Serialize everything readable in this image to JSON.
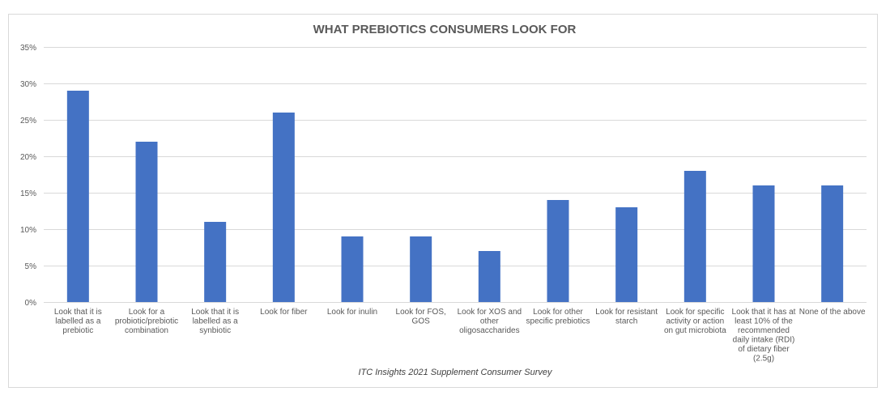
{
  "chart_data": {
    "type": "bar",
    "title": "WHAT PREBIOTICS CONSUMERS LOOK FOR",
    "caption": "ITC Insights 2021 Supplement Consumer Survey",
    "xlabel": "",
    "ylabel": "",
    "ylim": [
      0,
      35
    ],
    "y_ticks": [
      "0%",
      "5%",
      "10%",
      "15%",
      "20%",
      "25%",
      "30%",
      "35%"
    ],
    "grid": true,
    "bar_color": "#4472c4",
    "categories": [
      "Look that it is labelled as a prebiotic",
      "Look for a probiotic/prebiotic combination",
      "Look that it is labelled as a synbiotic",
      "Look for fiber",
      "Look for inulin",
      "Look for FOS, GOS",
      "Look for XOS and other oligosaccharides",
      "Look for other specific prebiotics",
      "Look for resistant starch",
      "Look for specific activity or action on gut microbiota",
      "Look that it has at least 10% of the recommended daily intake (RDI) of dietary fiber (2.5g)",
      "None of the above"
    ],
    "category_lines": [
      [
        "Look that it is",
        "labelled as a",
        "prebiotic"
      ],
      [
        "Look for a",
        "probiotic/prebiotic",
        "combination"
      ],
      [
        "Look that it is",
        "labelled as a",
        "synbiotic"
      ],
      [
        "Look for fiber"
      ],
      [
        "Look for inulin"
      ],
      [
        "Look for FOS,",
        "GOS"
      ],
      [
        "Look for XOS and",
        "other",
        "oligosaccharides"
      ],
      [
        "Look for other",
        "specific prebiotics"
      ],
      [
        "Look for resistant",
        "starch"
      ],
      [
        "Look for specific",
        "activity or action",
        "on gut microbiota"
      ],
      [
        "Look that it has at",
        "least 10% of the",
        "recommended",
        "daily intake (RDI)",
        "of dietary fiber",
        "(2.5g)"
      ],
      [
        "None of the above"
      ]
    ],
    "values": [
      29,
      22,
      11,
      26,
      9,
      9,
      7,
      14,
      13,
      18,
      16,
      16
    ]
  }
}
